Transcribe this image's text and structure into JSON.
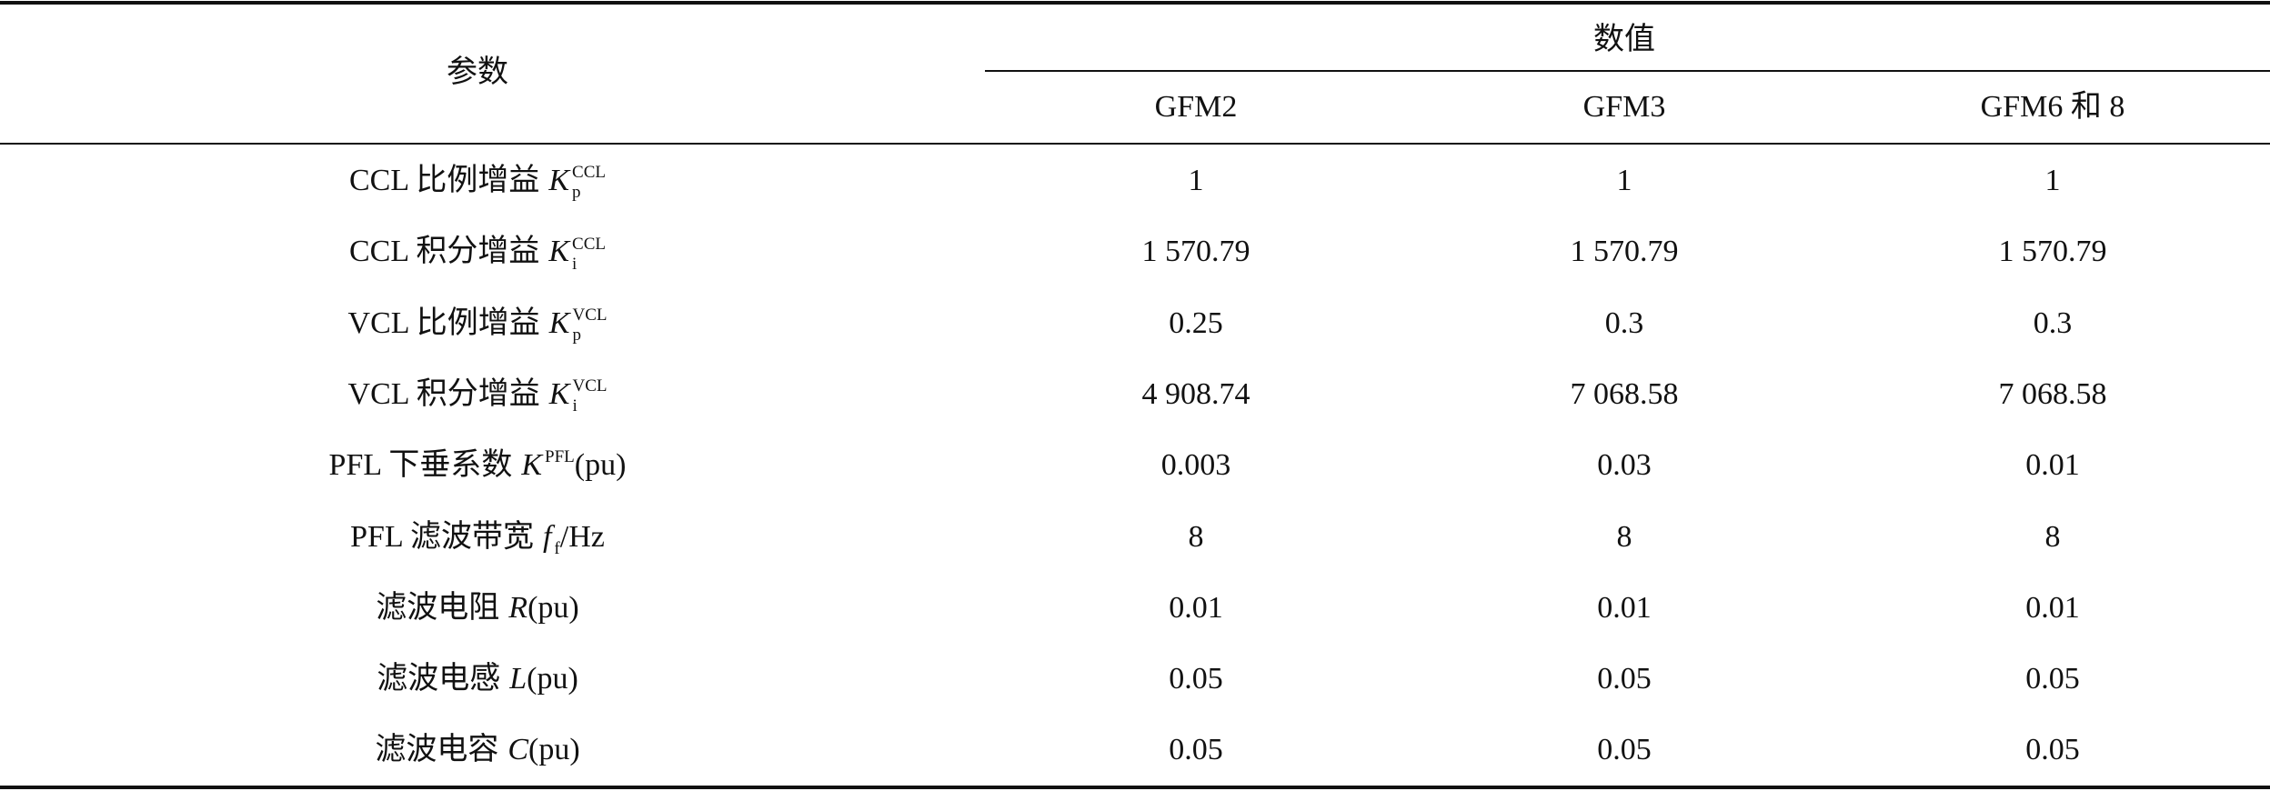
{
  "header": {
    "param": "参数",
    "value": "数值",
    "columns": [
      "GFM2",
      "GFM3",
      "GFM6 和 8"
    ]
  },
  "rows": [
    {
      "param": {
        "label": "CCL 比例增益",
        "symbol": "K",
        "sub": "p",
        "sup": "CCL"
      },
      "values": [
        "1",
        "1",
        "1"
      ]
    },
    {
      "param": {
        "label": "CCL 积分增益",
        "symbol": "K",
        "sub": "i",
        "sup": "CCL"
      },
      "values": [
        "1 570.79",
        "1 570.79",
        "1 570.79"
      ]
    },
    {
      "param": {
        "label": "VCL 比例增益",
        "symbol": "K",
        "sub": "p",
        "sup": "VCL"
      },
      "values": [
        "0.25",
        "0.3",
        "0.3"
      ]
    },
    {
      "param": {
        "label": "VCL 积分增益",
        "symbol": "K",
        "sub": "i",
        "sup": "VCL"
      },
      "values": [
        "4 908.74",
        "7 068.58",
        "7 068.58"
      ]
    },
    {
      "param": {
        "label": "PFL 下垂系数",
        "symbol": "K",
        "sup": "PFL",
        "unit": "(pu)"
      },
      "values": [
        "0.003",
        "0.03",
        "0.01"
      ]
    },
    {
      "param": {
        "label": "PFL 滤波带宽",
        "symbol": "f",
        "sub": "f",
        "unit": "/Hz"
      },
      "values": [
        "8",
        "8",
        "8"
      ]
    },
    {
      "param": {
        "label": "滤波电阻",
        "symbol": "R",
        "unit": "(pu)"
      },
      "values": [
        "0.01",
        "0.01",
        "0.01"
      ]
    },
    {
      "param": {
        "label": "滤波电感",
        "symbol": "L",
        "unit": "(pu)"
      },
      "values": [
        "0.05",
        "0.05",
        "0.05"
      ]
    },
    {
      "param": {
        "label": "滤波电容",
        "symbol": "C",
        "unit": "(pu)"
      },
      "values": [
        "0.05",
        "0.05",
        "0.05"
      ]
    }
  ]
}
